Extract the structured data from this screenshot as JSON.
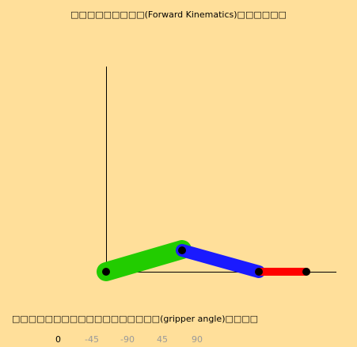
{
  "title": "□□□□□□□□□(Forward Kinematics)□□□□□□",
  "gripper_label": "□□□□□□□□□□□□□□□□□□(gripper angle)□□□□",
  "angle_options": [
    {
      "label": "0",
      "selected": true
    },
    {
      "label": "-45",
      "selected": false
    },
    {
      "label": "-90",
      "selected": false
    },
    {
      "label": "45",
      "selected": false
    },
    {
      "label": "90",
      "selected": false
    }
  ],
  "colors": {
    "background": "#ffdf9a",
    "link1": "#22cc00",
    "link2": "#1a1aff",
    "link3": "#ff0000",
    "joint": "#000000",
    "axis": "#000000"
  }
}
